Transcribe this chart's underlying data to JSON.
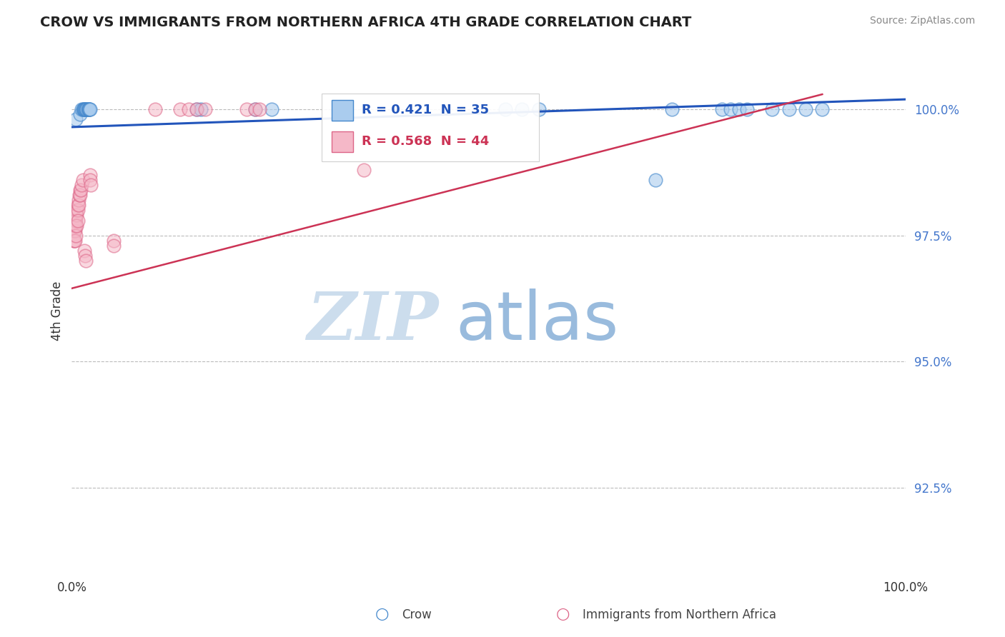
{
  "title": "CROW VS IMMIGRANTS FROM NORTHERN AFRICA 4TH GRADE CORRELATION CHART",
  "source": "Source: ZipAtlas.com",
  "ylabel": "4th Grade",
  "ytick_labels": [
    "100.0%",
    "97.5%",
    "95.0%",
    "92.5%"
  ],
  "ytick_values": [
    1.0,
    0.975,
    0.95,
    0.925
  ],
  "legend_label1": "Crow",
  "legend_label2": "Immigrants from Northern Africa",
  "legend_R1": "R = 0.421",
  "legend_N1": "N = 35",
  "legend_R2": "R = 0.568",
  "legend_N2": "N = 44",
  "color_blue_face": "#aaccee",
  "color_pink_face": "#f5b8c8",
  "color_blue_edge": "#4488cc",
  "color_pink_edge": "#dd6688",
  "color_blue_line": "#2255bb",
  "color_pink_line": "#cc3355",
  "color_legend_blue": "#2255bb",
  "color_legend_pink": "#cc3355",
  "color_ytick": "#4477cc",
  "blue_scatter_x": [
    0.005,
    0.01,
    0.012,
    0.013,
    0.014,
    0.014,
    0.015,
    0.016,
    0.016,
    0.017,
    0.018,
    0.018,
    0.019,
    0.02,
    0.02,
    0.021,
    0.021,
    0.022,
    0.15,
    0.155,
    0.22,
    0.24,
    0.52,
    0.54,
    0.56,
    0.7,
    0.72,
    0.78,
    0.79,
    0.8,
    0.81,
    0.84,
    0.86,
    0.88,
    0.9
  ],
  "blue_scatter_y": [
    0.998,
    0.999,
    1.0,
    1.0,
    1.0,
    1.0,
    1.0,
    1.0,
    1.0,
    1.0,
    1.0,
    1.0,
    1.0,
    1.0,
    1.0,
    1.0,
    1.0,
    1.0,
    1.0,
    1.0,
    1.0,
    1.0,
    1.0,
    1.0,
    1.0,
    0.986,
    1.0,
    1.0,
    1.0,
    1.0,
    1.0,
    1.0,
    1.0,
    1.0,
    1.0
  ],
  "pink_scatter_x": [
    0.002,
    0.002,
    0.003,
    0.003,
    0.003,
    0.004,
    0.004,
    0.004,
    0.004,
    0.005,
    0.005,
    0.005,
    0.005,
    0.006,
    0.006,
    0.006,
    0.007,
    0.007,
    0.007,
    0.008,
    0.008,
    0.009,
    0.01,
    0.01,
    0.011,
    0.012,
    0.013,
    0.015,
    0.016,
    0.017,
    0.022,
    0.022,
    0.023,
    0.05,
    0.05,
    0.1,
    0.13,
    0.14,
    0.15,
    0.16,
    0.21,
    0.22,
    0.225,
    0.35
  ],
  "pink_scatter_y": [
    0.976,
    0.974,
    0.977,
    0.976,
    0.974,
    0.978,
    0.977,
    0.976,
    0.974,
    0.979,
    0.978,
    0.977,
    0.975,
    0.98,
    0.979,
    0.977,
    0.981,
    0.98,
    0.978,
    0.982,
    0.981,
    0.983,
    0.984,
    0.983,
    0.984,
    0.985,
    0.986,
    0.972,
    0.971,
    0.97,
    0.987,
    0.986,
    0.985,
    0.974,
    0.973,
    1.0,
    1.0,
    1.0,
    1.0,
    1.0,
    1.0,
    1.0,
    1.0,
    0.988
  ],
  "blue_line_x": [
    0.0,
    1.0
  ],
  "blue_line_y": [
    0.9965,
    1.002
  ],
  "pink_line_x": [
    0.0,
    0.9
  ],
  "pink_line_y": [
    0.9645,
    1.003
  ],
  "xlim": [
    0.0,
    1.0
  ],
  "ylim": [
    0.908,
    1.012
  ],
  "watermark_ZIP": "ZIP",
  "watermark_atlas": "atlas",
  "watermark_color_ZIP": "#ccdded",
  "watermark_color_atlas": "#99bbdd",
  "background_color": "#ffffff",
  "grid_color": "#bbbbbb"
}
